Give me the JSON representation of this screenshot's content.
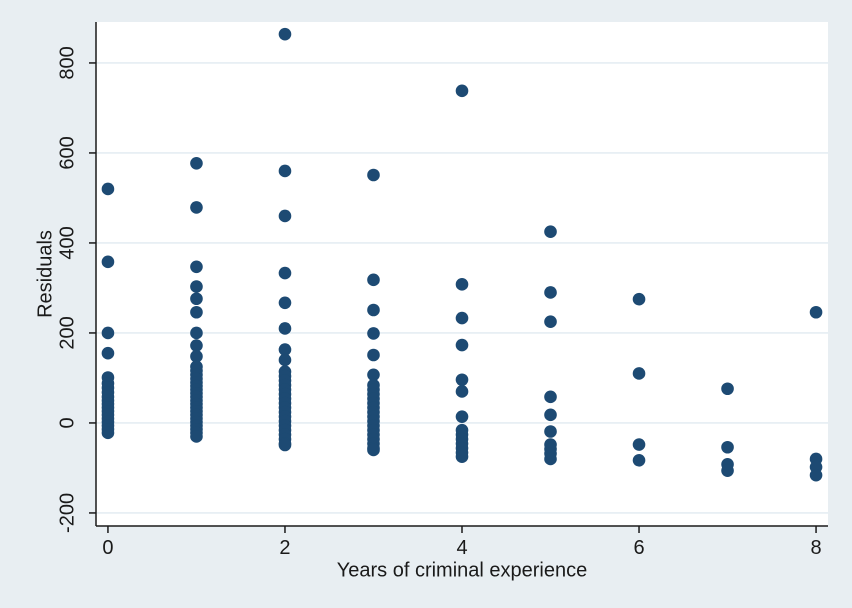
{
  "window": {
    "background": "#e8eef2",
    "left_strip_color": "#a1a1a1",
    "right_strip_color": "#f7fafb"
  },
  "chart_data": {
    "type": "scatter",
    "title": "",
    "xlabel": "Years of criminal experience",
    "ylabel": "Residuals",
    "xlim": [
      -0.135,
      8.135
    ],
    "ylim": [
      -229,
      891
    ],
    "x_ticks": [
      0,
      2,
      4,
      6,
      8
    ],
    "y_ticks": [
      -200,
      0,
      200,
      400,
      600,
      800
    ],
    "grid": "horizontal-only",
    "legend": "none",
    "marker_color": "#1d4a73",
    "plot_background": "#ffffff",
    "grid_color": "#e1eaf0",
    "axis_color": "#1a1a1a",
    "tick_font_px": 20,
    "series": [
      {
        "x": 0,
        "values": [
          520,
          358,
          200,
          155,
          101,
          88,
          78,
          68,
          58,
          50,
          42,
          34,
          26,
          18,
          10,
          2,
          -6,
          -14,
          -22
        ]
      },
      {
        "x": 1,
        "values": [
          577,
          479,
          347,
          303,
          276,
          246,
          200,
          172,
          148,
          125,
          116,
          107,
          98,
          90,
          82,
          74,
          66,
          58,
          50,
          42,
          34,
          26,
          18,
          10,
          2,
          -6,
          -14,
          -22,
          -30
        ]
      },
      {
        "x": 2,
        "values": [
          864,
          560,
          460,
          333,
          267,
          210,
          163,
          140,
          114,
          104,
          94,
          84,
          74,
          64,
          54,
          44,
          34,
          24,
          14,
          4,
          -6,
          -16,
          -26,
          -36,
          -46,
          -49
        ]
      },
      {
        "x": 3,
        "values": [
          551,
          318,
          251,
          199,
          151,
          107,
          84,
          74,
          64,
          54,
          44,
          34,
          24,
          14,
          4,
          -6,
          -16,
          -26,
          -36,
          -46,
          -56,
          -60
        ]
      },
      {
        "x": 4,
        "values": [
          738,
          308,
          233,
          173,
          96,
          70,
          14,
          -16,
          -26,
          -36,
          -46,
          -56,
          -66,
          -75
        ]
      },
      {
        "x": 5,
        "values": [
          425,
          290,
          225,
          58,
          18,
          -19,
          -48,
          -58,
          -68,
          -80
        ]
      },
      {
        "x": 6,
        "values": [
          275,
          110,
          -48,
          -83
        ]
      },
      {
        "x": 7,
        "values": [
          76,
          -54,
          -92,
          -106
        ]
      },
      {
        "x": 8,
        "values": [
          246,
          -80,
          -98,
          -116
        ]
      }
    ]
  }
}
